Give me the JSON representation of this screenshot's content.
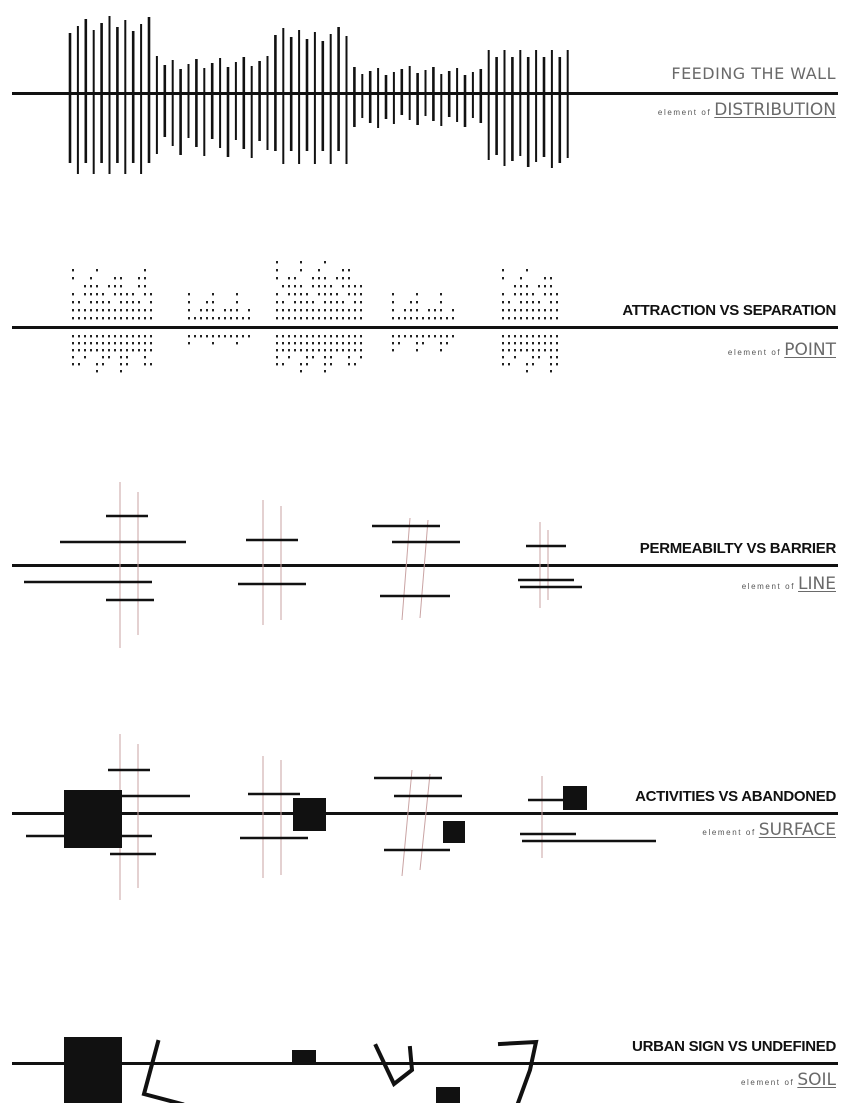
{
  "panels": [
    {
      "title": "FEEDING THE WALL",
      "prefix": "element of",
      "keyword": "DISTRIBUTION"
    },
    {
      "title": "ATTRACTION VS SEPARATION",
      "prefix": "element of",
      "keyword": "POINT"
    },
    {
      "title": "PERMEABILTY VS BARRIER",
      "prefix": "element of",
      "keyword": "LINE"
    },
    {
      "title": "ACTIVITIES VS ABANDONED",
      "prefix": "element of",
      "keyword": "SURFACE"
    },
    {
      "title": "URBAN SIGN VS UNDEFINED",
      "prefix": "element of",
      "keyword": "SOIL"
    }
  ],
  "colors": {
    "ink": "#111111",
    "guide": "#c9a3a3",
    "text_light": "#6a6a6a"
  }
}
